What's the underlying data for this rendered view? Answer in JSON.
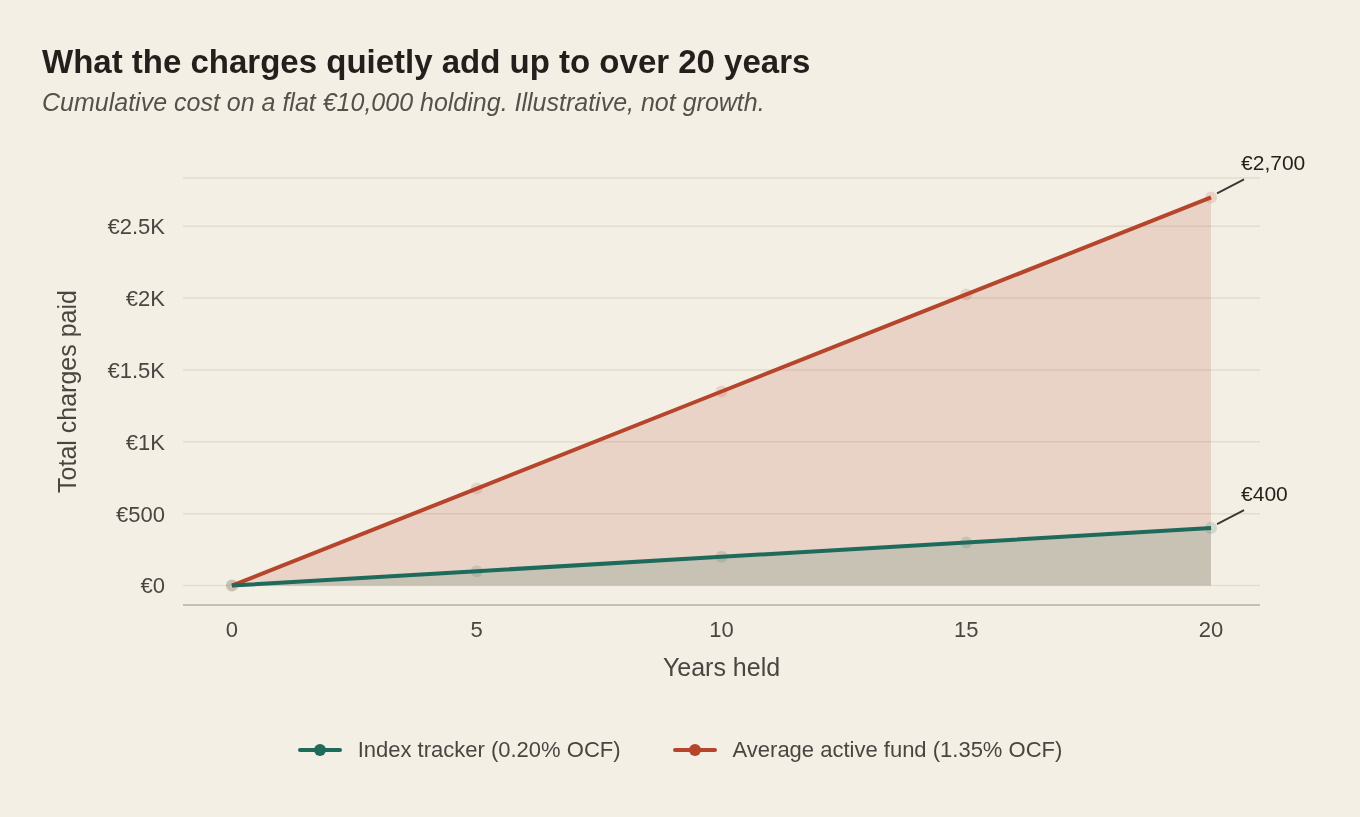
{
  "chart_data": {
    "type": "area",
    "title": "What the charges quietly add up to over 20 years",
    "subtitle": "Cumulative cost on a flat €10,000 holding. Illustrative, not growth.",
    "xlabel": "Years held",
    "ylabel": "Total charges paid",
    "x": [
      0,
      5,
      10,
      15,
      20
    ],
    "series": [
      {
        "name": "Index tracker (0.20% OCF)",
        "color": "#1e6b5c",
        "values": [
          0,
          100,
          200,
          300,
          400
        ]
      },
      {
        "name": "Average active fund (1.35% OCF)",
        "color": "#b5452b",
        "values": [
          0,
          675,
          1350,
          2025,
          2700
        ]
      }
    ],
    "xlim": [
      -1,
      21
    ],
    "ylim": [
      -135,
      2835
    ],
    "xticks": [
      0,
      5,
      10,
      15,
      20
    ],
    "yticks": [
      {
        "value": 0,
        "label": "€0"
      },
      {
        "value": 500,
        "label": "€500"
      },
      {
        "value": 1000,
        "label": "€1K"
      },
      {
        "value": 1500,
        "label": "€1.5K"
      },
      {
        "value": 2000,
        "label": "€2K"
      },
      {
        "value": 2500,
        "label": "€2.5K"
      }
    ],
    "grid": "y",
    "legend": "bottom",
    "marker": "circle",
    "annotations": [
      {
        "text": "€2,700",
        "x": 20,
        "y": 2700
      },
      {
        "text": "€400",
        "x": 20,
        "y": 400
      }
    ]
  }
}
